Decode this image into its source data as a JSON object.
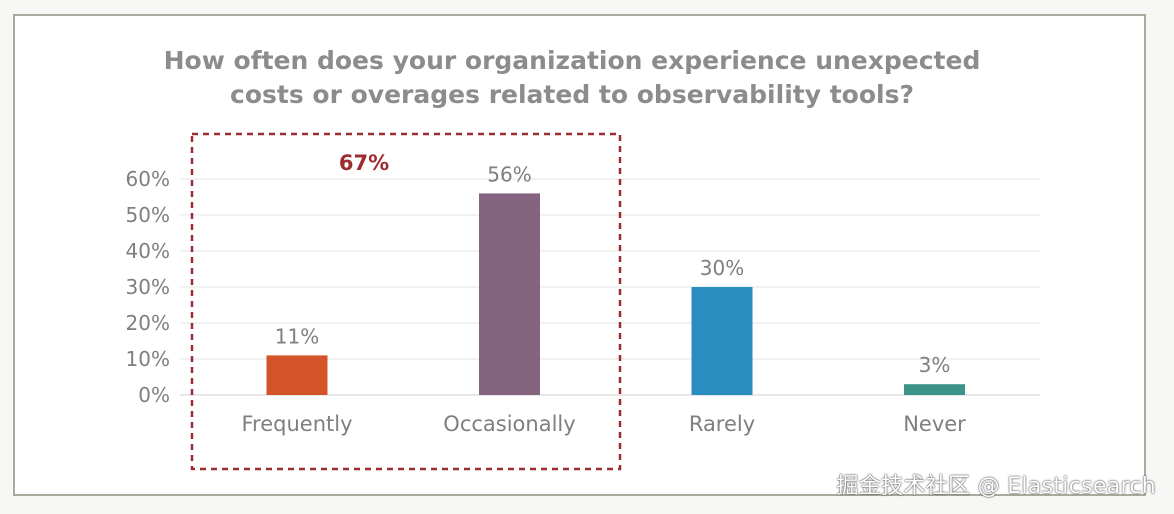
{
  "chart_data": {
    "type": "bar",
    "title_lines": [
      "How often does your organization experience unexpected",
      "costs or overages related to observability tools?"
    ],
    "categories": [
      "Frequently",
      "Occasionally",
      "Rarely",
      "Never"
    ],
    "values": [
      11,
      56,
      30,
      3
    ],
    "value_labels": [
      "11%",
      "56%",
      "30%",
      "3%"
    ],
    "bar_colors": [
      "#d4542a",
      "#84647f",
      "#2a8dc0",
      "#3b9487"
    ],
    "ylim": [
      0,
      60
    ],
    "yticks": [
      0,
      10,
      20,
      30,
      40,
      50,
      60
    ],
    "ytick_labels": [
      "0%",
      "10%",
      "20%",
      "30%",
      "40%",
      "50%",
      "60%"
    ],
    "grid": true,
    "xlabel": "",
    "ylabel": "",
    "annotation": {
      "label": "67%",
      "color": "#9b2d30",
      "covers_categories": [
        "Frequently",
        "Occasionally"
      ]
    }
  },
  "watermark": "掘金技术社区 @ Elasticsearch"
}
